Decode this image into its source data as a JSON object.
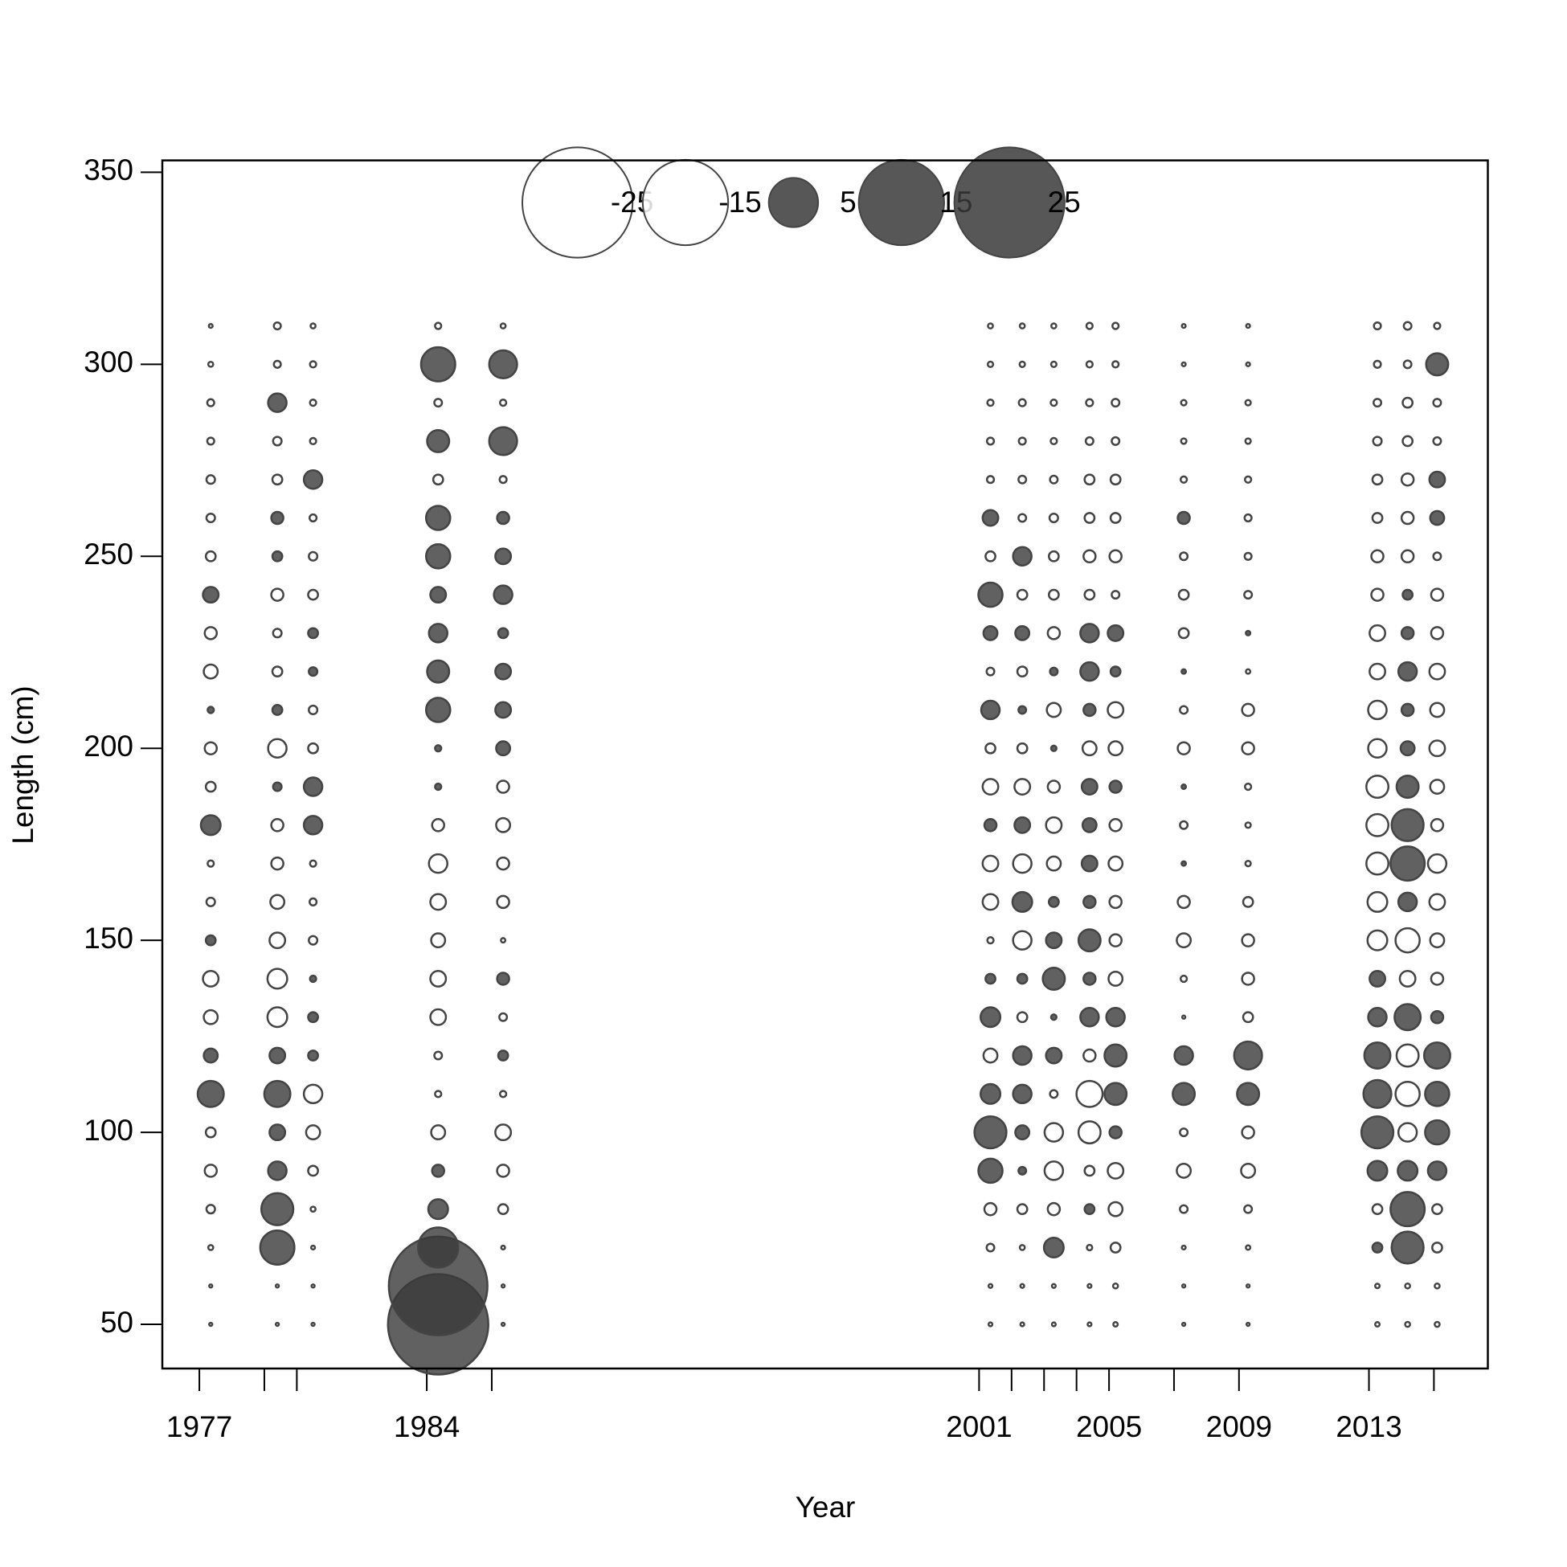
{
  "chart_data": {
    "type": "bubble",
    "xlabel": "Year",
    "ylabel": "Length (cm)",
    "xlim": [
      1975.86,
      2016.66
    ],
    "ylim": [
      38.5,
      353.1
    ],
    "xticks": [
      1977,
      {
        "value": 1979,
        "label": null
      },
      {
        "value": 1980,
        "label": null
      },
      1984,
      {
        "value": 1986,
        "label": null
      },
      2001,
      {
        "value": 2002,
        "label": null
      },
      {
        "value": 2003,
        "label": null
      },
      {
        "value": 2004,
        "label": null
      },
      2005,
      {
        "value": 2007,
        "label": null
      },
      2009,
      2013,
      {
        "value": 2015,
        "label": null
      }
    ],
    "yticks": [
      50,
      100,
      150,
      200,
      250,
      300,
      350
    ],
    "colors": {
      "positive": "#3a3a3a",
      "negative": "#ffffff",
      "stroke": "#444444"
    },
    "legend": [
      -25,
      -15,
      5,
      15,
      25
    ],
    "x": [
      1977.35,
      1979.4,
      1980.5,
      1984.35,
      1986.35,
      2001.35,
      2002.33,
      2003.3,
      2004.4,
      2005.2,
      2007.3,
      2009.28,
      2013.26,
      2014.19,
      2015.1
    ],
    "y": [
      50,
      60,
      70,
      80,
      90,
      100,
      110,
      120,
      130,
      140,
      150,
      160,
      170,
      180,
      190,
      200,
      210,
      220,
      230,
      240,
      250,
      260,
      270,
      280,
      290,
      300,
      310
    ],
    "values": [
      [
        -0.02,
        -0.02,
        -0.05,
        -0.15,
        -0.3,
        -0.2,
        1.4,
        0.4,
        -0.4,
        -0.5,
        0.2,
        -0.15,
        -0.08,
        0.8,
        -0.2,
        -0.3,
        0.08,
        -0.4,
        -0.3,
        0.5,
        -0.2,
        -0.15,
        -0.15,
        -0.1,
        -0.1,
        -0.05,
        -0.03
      ],
      [
        -0.02,
        -0.02,
        2.4,
        2.1,
        0.7,
        0.5,
        1.4,
        0.5,
        -0.8,
        -0.8,
        -0.5,
        -0.4,
        -0.3,
        -0.3,
        0.15,
        -0.7,
        0.2,
        -0.2,
        -0.15,
        -0.3,
        0.2,
        0.3,
        -0.2,
        -0.15,
        0.7,
        -0.1,
        -0.1
      ],
      [
        -0.02,
        -0.02,
        -0.03,
        -0.05,
        -0.2,
        -0.4,
        -0.7,
        0.2,
        0.2,
        0.08,
        -0.15,
        -0.1,
        -0.08,
        0.7,
        0.7,
        -0.2,
        -0.15,
        0.15,
        0.2,
        -0.2,
        -0.15,
        -0.1,
        0.7,
        -0.08,
        -0.08,
        -0.08,
        -0.05
      ],
      [
        20.7,
        20,
        3.3,
        0.8,
        0.3,
        -0.4,
        -0.08,
        -0.12,
        -0.5,
        -0.5,
        -0.4,
        -0.5,
        -0.7,
        -0.3,
        0.08,
        0.08,
        1.2,
        1,
        0.7,
        0.5,
        1.2,
        1.2,
        -0.2,
        1,
        -0.12,
        2.4,
        -0.08
      ],
      [
        -0.02,
        -0.02,
        -0.03,
        -0.2,
        -0.3,
        -0.5,
        -0.08,
        0.2,
        -0.12,
        0.3,
        -0.04,
        -0.3,
        -0.3,
        -0.4,
        -0.3,
        0.4,
        0.5,
        0.5,
        0.2,
        0.7,
        0.5,
        0.3,
        -0.1,
        1.6,
        -0.08,
        1.6,
        -0.05
      ],
      [
        -0.03,
        -0.03,
        -0.12,
        -0.3,
        1.2,
        2.1,
        0.8,
        -0.4,
        0.8,
        0.2,
        -0.08,
        -0.5,
        -0.5,
        0.3,
        -0.5,
        -0.2,
        0.7,
        -0.12,
        0.4,
        1.2,
        -0.2,
        0.5,
        -0.1,
        -0.1,
        -0.08,
        -0.06,
        -0.05
      ],
      [
        -0.03,
        -0.03,
        -0.05,
        -0.2,
        0.12,
        0.4,
        0.7,
        0.7,
        -0.2,
        0.2,
        -0.7,
        0.8,
        -0.7,
        0.5,
        -0.5,
        -0.2,
        0.12,
        -0.2,
        0.4,
        -0.2,
        0.7,
        -0.12,
        -0.12,
        -0.1,
        -0.1,
        -0.06,
        -0.05
      ],
      [
        -0.03,
        -0.03,
        0.8,
        -0.3,
        -0.7,
        -0.7,
        -0.12,
        0.5,
        0.06,
        1,
        0.5,
        0.2,
        -0.4,
        -0.5,
        -0.3,
        0.06,
        -0.4,
        0.12,
        -0.3,
        -0.2,
        -0.2,
        -0.15,
        -0.12,
        -0.08,
        -0.08,
        -0.06,
        -0.05
      ],
      [
        -0.03,
        -0.03,
        -0.06,
        0.2,
        -0.2,
        -1,
        -1.4,
        -0.3,
        0.7,
        0.3,
        1,
        0.3,
        0.5,
        0.4,
        0.5,
        -0.4,
        0.3,
        0.7,
        0.7,
        -0.2,
        -0.3,
        -0.2,
        -0.2,
        -0.12,
        -0.1,
        -0.08,
        -0.08
      ],
      [
        -0.04,
        -0.05,
        -0.2,
        -0.4,
        -0.5,
        0.3,
        1,
        1,
        0.7,
        -0.4,
        -0.3,
        -0.3,
        -0.4,
        -0.3,
        0.3,
        -0.4,
        -0.5,
        0.2,
        0.5,
        -0.12,
        -0.3,
        -0.2,
        -0.2,
        -0.12,
        -0.12,
        -0.08,
        -0.08
      ],
      [
        -0.02,
        -0.02,
        -0.03,
        -0.12,
        -0.4,
        -0.12,
        1,
        0.7,
        -0.02,
        -0.08,
        -0.4,
        -0.3,
        0.04,
        -0.12,
        0.04,
        -0.3,
        -0.12,
        0.04,
        -0.2,
        -0.2,
        -0.12,
        0.3,
        -0.08,
        -0.06,
        -0.06,
        -0.03,
        -0.03
      ],
      [
        -0.02,
        -0.02,
        -0.04,
        -0.12,
        -0.4,
        -0.3,
        1,
        1.6,
        -0.2,
        -0.3,
        -0.3,
        -0.2,
        -0.06,
        -0.06,
        -0.08,
        -0.3,
        -0.3,
        -0.04,
        0.04,
        -0.12,
        -0.1,
        -0.1,
        -0.08,
        -0.06,
        -0.06,
        -0.03,
        -0.03
      ],
      [
        -0.04,
        -0.04,
        0.2,
        -0.2,
        0.8,
        2.1,
        1.6,
        1.4,
        0.7,
        0.5,
        -0.8,
        -0.8,
        -1,
        -1,
        -1,
        -0.7,
        -0.7,
        -0.5,
        -0.5,
        -0.3,
        -0.3,
        -0.2,
        -0.2,
        -0.15,
        -0.12,
        -0.1,
        -0.1
      ],
      [
        -0.05,
        -0.05,
        2.1,
        2.4,
        0.8,
        -0.7,
        -1.2,
        -1,
        1.4,
        -0.5,
        -1.2,
        0.7,
        2.4,
        2.1,
        1,
        0.4,
        0.3,
        0.7,
        0.3,
        0.2,
        -0.3,
        -0.3,
        -0.3,
        -0.2,
        -0.2,
        -0.12,
        -0.12
      ],
      [
        -0.05,
        -0.05,
        -0.2,
        -0.2,
        0.7,
        1.2,
        1.2,
        1.4,
        0.3,
        -0.3,
        -0.4,
        -0.5,
        -0.7,
        -0.3,
        -0.4,
        -0.5,
        -0.4,
        -0.5,
        -0.3,
        -0.3,
        -0.12,
        0.4,
        0.5,
        -0.12,
        -0.12,
        1,
        -0.08
      ]
    ]
  }
}
